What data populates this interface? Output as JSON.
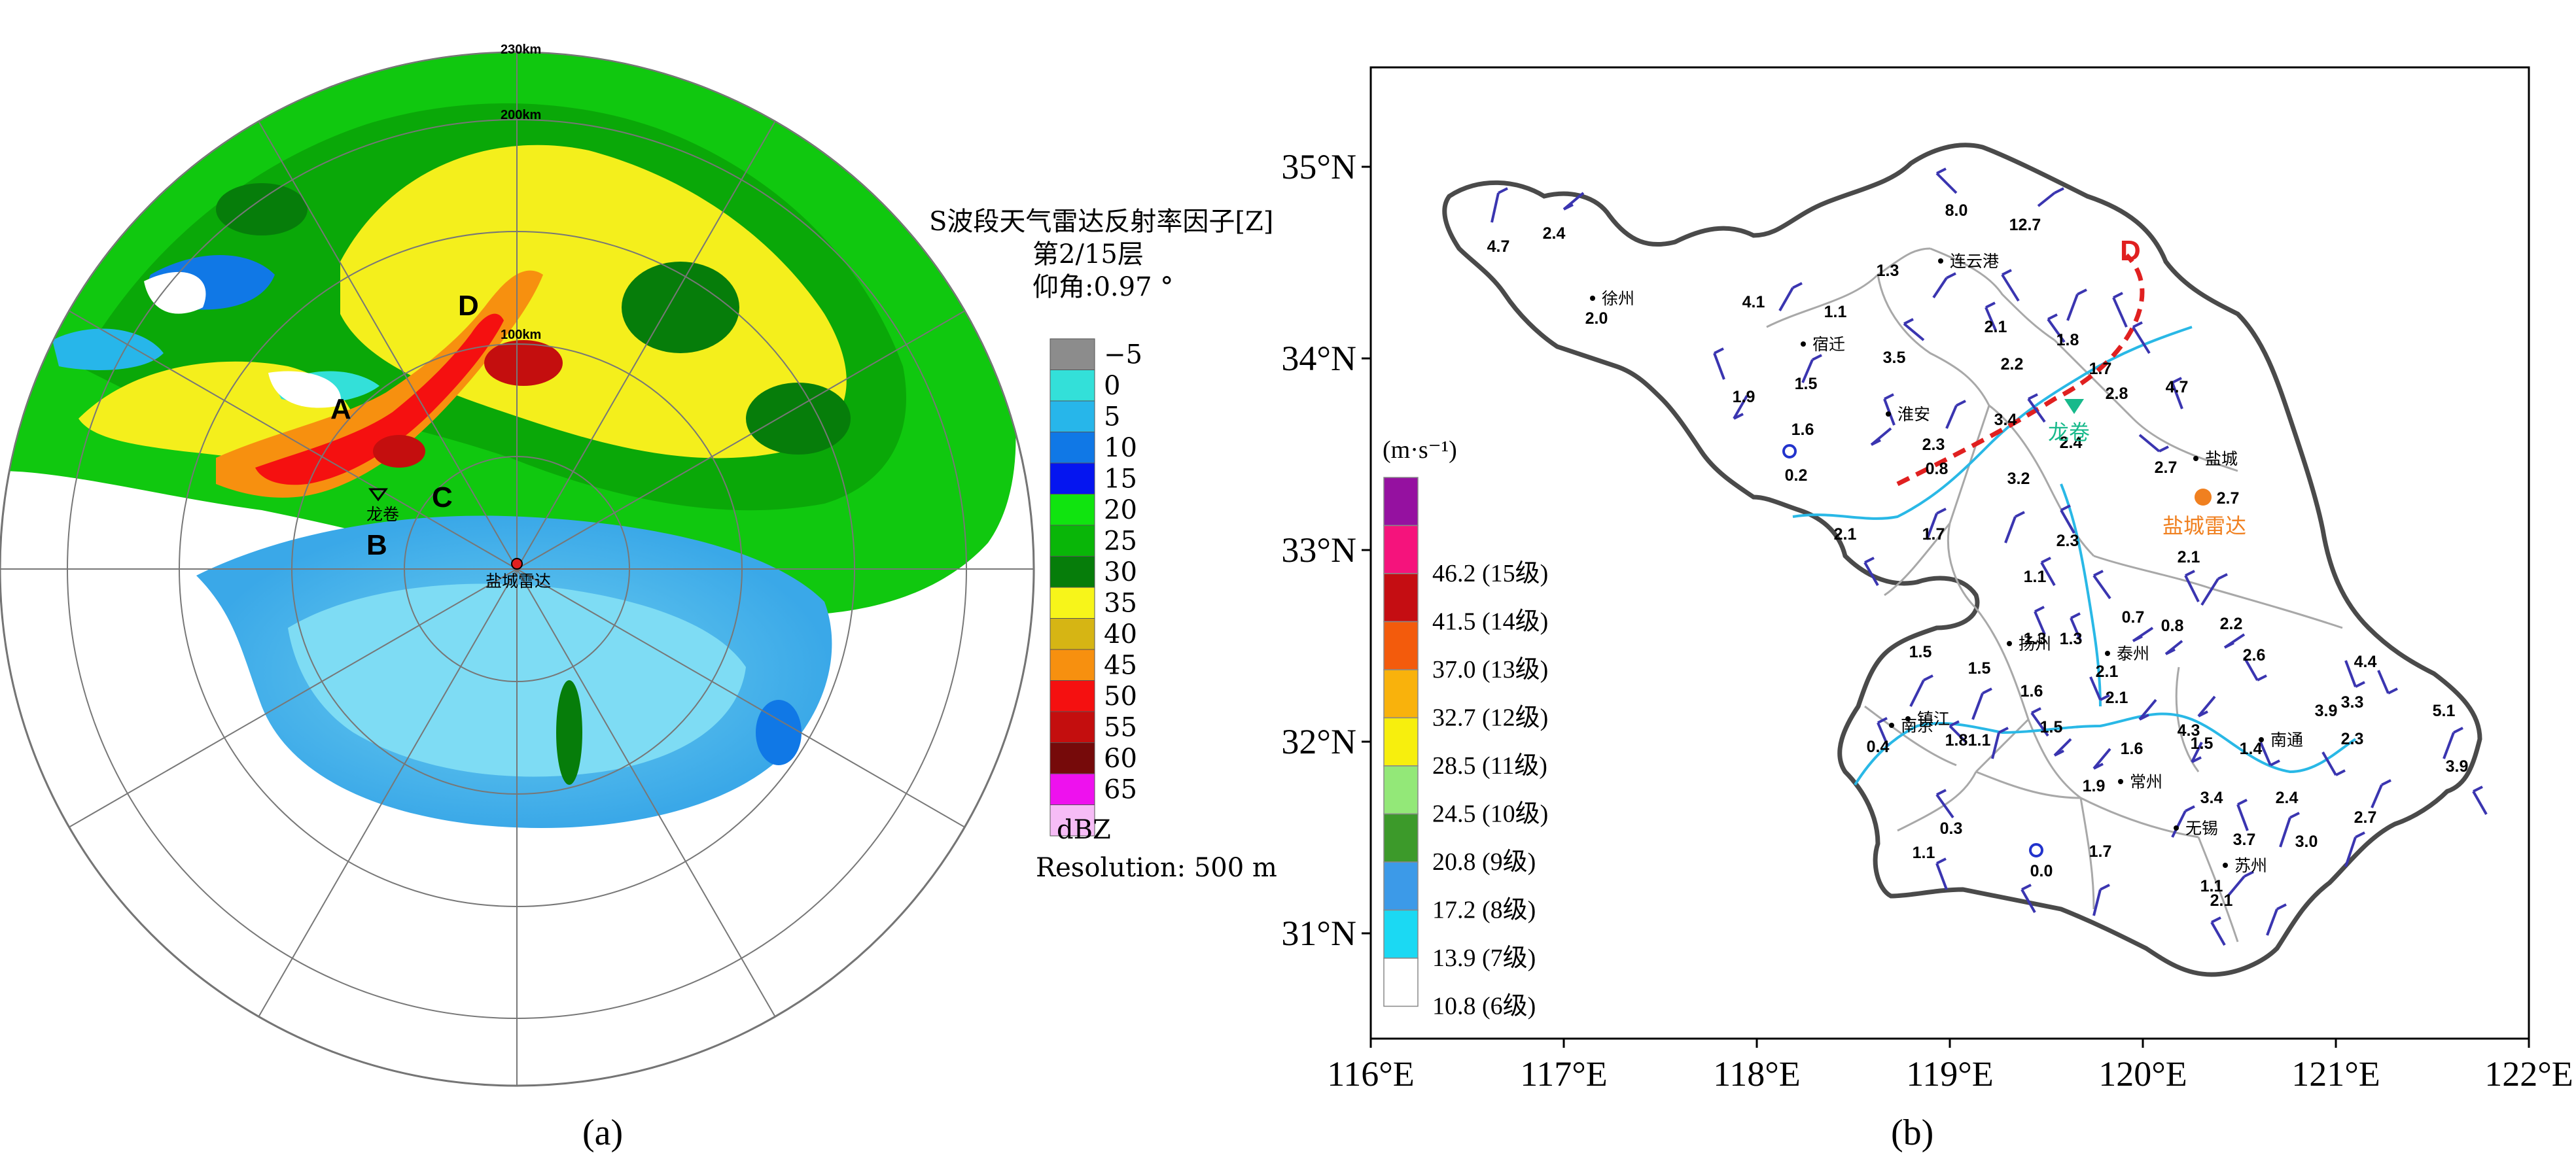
{
  "panel_a": {
    "label": "(a)",
    "title_line1": "S波段天气雷达反射率因子[Z]",
    "title_line2": "第2/15层",
    "title_line3": "仰角:0.97 °",
    "resolution": "Resolution: 500 m",
    "unit": "dBZ",
    "ring_labels": [
      "230km",
      "200km",
      "100km"
    ],
    "markers": {
      "A": "A",
      "B": "B",
      "C": "C",
      "D": "D"
    },
    "tornado_label": "龙卷",
    "radar_label": "盐城雷达",
    "scale": [
      {
        "label": "−5",
        "color": "#8c8c8c"
      },
      {
        "label": "0",
        "color": "#33e0d9"
      },
      {
        "label": "5",
        "color": "#27b6ea"
      },
      {
        "label": "10",
        "color": "#1078e6"
      },
      {
        "label": "15",
        "color": "#0515f0"
      },
      {
        "label": "20",
        "color": "#10e40f"
      },
      {
        "label": "25",
        "color": "#09b608"
      },
      {
        "label": "30",
        "color": "#067d0a"
      },
      {
        "label": "35",
        "color": "#f7f51a"
      },
      {
        "label": "40",
        "color": "#d6b514"
      },
      {
        "label": "45",
        "color": "#f7900f"
      },
      {
        "label": "50",
        "color": "#f51010"
      },
      {
        "label": "55",
        "color": "#c40e0e"
      },
      {
        "label": "60",
        "color": "#760a0a"
      },
      {
        "label": "65",
        "color": "#ee11ee"
      },
      {
        "label": "",
        "color": "#f6bcf6"
      }
    ]
  },
  "panel_b": {
    "label": "(b)",
    "unit": "(m·s⁻¹)",
    "legend": [
      {
        "label": "",
        "color": "#9511a0"
      },
      {
        "label": "46.2 (15级)",
        "color": "#f5137c"
      },
      {
        "label": "41.5 (14级)",
        "color": "#c50d12"
      },
      {
        "label": "37.0 (13级)",
        "color": "#f35b0c"
      },
      {
        "label": "32.7 (12级)",
        "color": "#f9b20c"
      },
      {
        "label": "28.5 (11级)",
        "color": "#f7ef0d"
      },
      {
        "label": "24.5 (10级)",
        "color": "#93e878"
      },
      {
        "label": "20.8 (9级)",
        "color": "#3c9a2a"
      },
      {
        "label": "17.2 (8级)",
        "color": "#3c9ae8"
      },
      {
        "label": "13.9 (7级)",
        "color": "#1bd9f3"
      },
      {
        "label": "10.8 (6级)",
        "color": "#ffffff"
      }
    ],
    "y_ticks": [
      "35°N",
      "34°N",
      "33°N",
      "32°N",
      "31°N"
    ],
    "x_ticks": [
      "116°E",
      "117°E",
      "118°E",
      "119°E",
      "120°E",
      "121°E",
      "122°E"
    ],
    "line_label": "D",
    "tornado_label": "龙卷",
    "radar_label": "盐城雷达",
    "cities": [
      "徐州",
      "宿迁",
      "连云港",
      "淮安",
      "盐城",
      "扬州",
      "泰州",
      "南京",
      "镇江",
      "常州",
      "无锡",
      "苏州",
      "南通"
    ],
    "station_values": [
      "4.7",
      "2.4",
      "8.0",
      "12.7",
      "2.0",
      "4.1",
      "1.1",
      "1.3",
      "1.9",
      "1.5",
      "3.5",
      "2.1",
      "2.2",
      "1.8",
      "1.7",
      "2.8",
      "4.7",
      "1.6",
      "2.3",
      "3.4",
      "0.8",
      "2.4",
      "2.7",
      "2.7",
      "0.2",
      "2.1",
      "1.7",
      "3.2",
      "2.3",
      "2.1",
      "1.1",
      "1.3",
      "1.3",
      "0.7",
      "0.8",
      "2.2",
      "2.6",
      "1.5",
      "1.5",
      "1.6",
      "2.1",
      "2.1",
      "4.4",
      "0.4",
      "1.8",
      "1.1",
      "1.5",
      "1.9",
      "1.6",
      "4.3",
      "1.5",
      "1.4",
      "3.9",
      "3.3",
      "2.3",
      "5.1",
      "3.9",
      "0.3",
      "1.1",
      "0.0",
      "1.7",
      "3.4",
      "2.4",
      "2.7",
      "3.7",
      "3.0",
      "1.1",
      "2.1"
    ],
    "colors": {
      "border": "#4a4a4a",
      "river": "#29b8e6",
      "dline": "#e02020",
      "tornado": "#17b98b",
      "radar": "#f08020",
      "circle": "#2233cc",
      "barb": "#3a35b0"
    }
  }
}
